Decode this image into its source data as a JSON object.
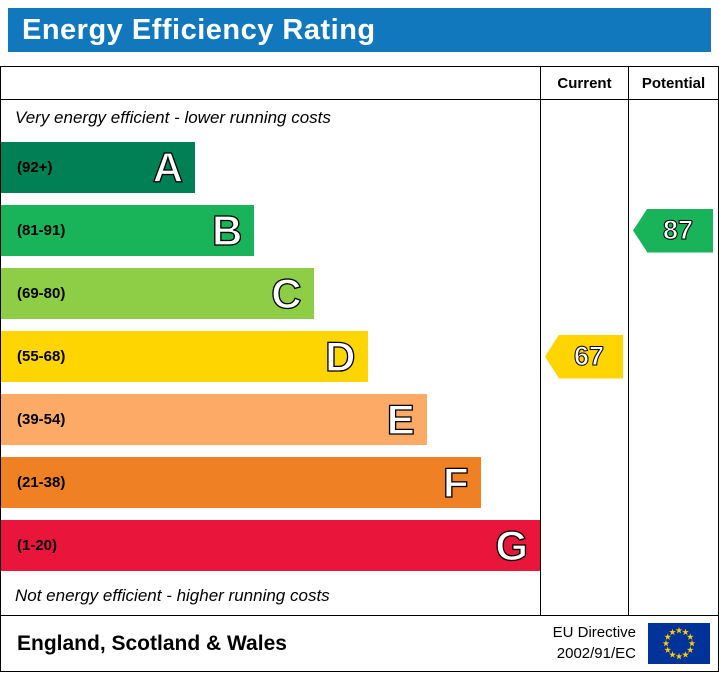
{
  "colors": {
    "header_bg": "#1278be",
    "border": "#000000"
  },
  "chart_data": {
    "type": "bar",
    "title": "Energy Efficiency Rating",
    "top_note": "Very energy efficient - lower running costs",
    "bottom_note": "Not energy efficient - higher running costs",
    "columns": {
      "current": "Current",
      "potential": "Potential"
    },
    "bands": [
      {
        "letter": "A",
        "range": "(92+)",
        "min": 92,
        "max": 100,
        "color": "#008054",
        "width_pct": 36
      },
      {
        "letter": "B",
        "range": "(81-91)",
        "min": 81,
        "max": 91,
        "color": "#19b459",
        "width_pct": 47
      },
      {
        "letter": "C",
        "range": "(69-80)",
        "min": 69,
        "max": 80,
        "color": "#8dce46",
        "width_pct": 58
      },
      {
        "letter": "D",
        "range": "(55-68)",
        "min": 55,
        "max": 68,
        "color": "#ffd500",
        "width_pct": 68
      },
      {
        "letter": "E",
        "range": "(39-54)",
        "min": 39,
        "max": 54,
        "color": "#fcaa65",
        "width_pct": 79
      },
      {
        "letter": "F",
        "range": "(21-38)",
        "min": 21,
        "max": 38,
        "color": "#ef8023",
        "width_pct": 89
      },
      {
        "letter": "G",
        "range": "(1-20)",
        "min": 1,
        "max": 20,
        "color": "#e9153b",
        "width_pct": 100
      }
    ],
    "current": {
      "value": 67,
      "band": "D",
      "color": "#ffd500"
    },
    "potential": {
      "value": 87,
      "band": "B",
      "color": "#19b459"
    }
  },
  "footer": {
    "region": "England, Scotland & Wales",
    "eu_directive_line1": "EU Directive",
    "eu_directive_line2": "2002/91/EC"
  }
}
